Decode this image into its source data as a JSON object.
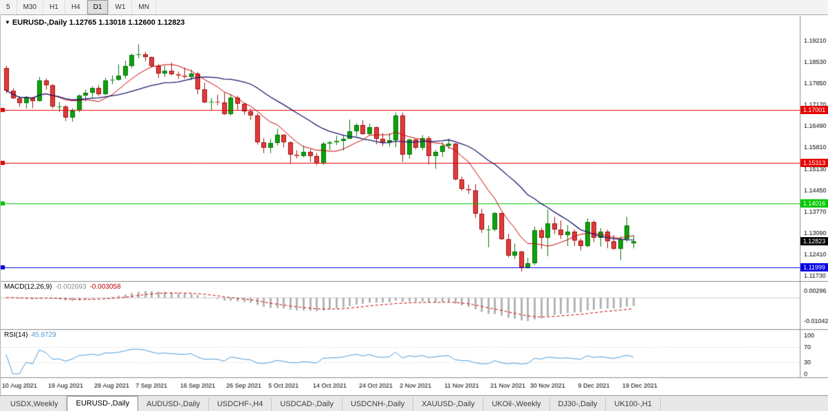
{
  "toolbar": {
    "timeframes": [
      "5",
      "M30",
      "H1",
      "H4",
      "D1",
      "W1",
      "MN"
    ],
    "active": "D1"
  },
  "chart": {
    "title": "EURUSD-,Daily",
    "ohlc_text": "1.12765 1.13018 1.12600 1.12823",
    "current_price": "1.12823"
  },
  "macd": {
    "label": "MACD(12,26,9)",
    "value_main": "-0.002693",
    "value_signal": "-0.003058",
    "axis_labels": [
      {
        "label": "0.00296",
        "value": 0.00296
      },
      {
        "label": "-0.01042",
        "value": -0.01042
      }
    ]
  },
  "rsi": {
    "label": "RSI(14)",
    "value": "45.9729",
    "axis_labels": [
      {
        "label": "100",
        "value": 100
      },
      {
        "label": "70",
        "value": 70
      },
      {
        "label": "30",
        "value": 30
      },
      {
        "label": "0",
        "value": 0
      }
    ]
  },
  "tabs": [
    "USDX,Weekly",
    "EURUSD-,Daily",
    "AUDUSD-,Daily",
    "USDCHF-,H4",
    "USDCAD-,Daily",
    "USDCNH-,Daily",
    "XAUUSD-,Daily",
    "UKOil-,Weekly",
    "DJ30-,Daily",
    "UK100-,H1"
  ],
  "active_tab_index": 1,
  "colors": {
    "up_candle": "#0ea10e",
    "up_candle_border": "#067306",
    "down_candle": "#e23b3b",
    "down_candle_border": "#9e1010",
    "ma_fast": "#cc0000",
    "ma_slow": "#191970",
    "macd_histogram": "#b4b4b4",
    "macd_signal": "#cc0000",
    "rsi_line": "#4f9bd5",
    "current_price_bg": "#000000"
  },
  "chart_data": {
    "type": "candlestick",
    "symbol": "EURUSD-",
    "timeframe": "Daily",
    "y_range": [
      1.1173,
      1.1921
    ],
    "y_axis_ticks": [
      "1.19210",
      "1.18530",
      "1.17850",
      "1.17170",
      "1.16490",
      "1.15810",
      "1.15130",
      "1.14450",
      "1.13770",
      "1.13090",
      "1.12410",
      "1.11730"
    ],
    "x_axis_labels": [
      "10 Aug 2021",
      "19 Aug 2021",
      "29 Aug 2021",
      "7 Sep 2021",
      "16 Sep 2021",
      "26 Sep 2021",
      "5 Oct 2021",
      "14 Oct 2021",
      "24 Oct 2021",
      "2 Nov 2021",
      "11 Nov 2021",
      "21 Nov 2021",
      "30 Nov 2021",
      "9 Dec 2021",
      "19 Dec 2021"
    ],
    "x_label_indices": [
      2,
      9,
      16,
      22,
      29,
      36,
      42,
      49,
      56,
      62,
      69,
      76,
      82,
      89,
      96
    ],
    "horizontal_levels": [
      {
        "label": "1.17001",
        "value": 1.17001,
        "color": "#e60000"
      },
      {
        "label": "1.15313",
        "value": 1.15313,
        "color": "#e60000"
      },
      {
        "label": "1.14016",
        "value": 1.14016,
        "color": "#00c800"
      },
      {
        "label": "1.11999",
        "value": 1.11999,
        "color": "#0000e6"
      }
    ],
    "moving_averages": [
      {
        "period": 8,
        "color": "#cc0000"
      },
      {
        "period": 20,
        "color": "#191970"
      }
    ],
    "indicators": {
      "macd": {
        "fast": 12,
        "slow": 26,
        "signal": 9
      },
      "rsi": {
        "period": 14
      }
    },
    "candles": [
      [
        1.1833,
        1.1841,
        1.1753,
        1.1762
      ],
      [
        1.1762,
        1.1769,
        1.1735,
        1.1738
      ],
      [
        1.1738,
        1.1744,
        1.171,
        1.1721
      ],
      [
        1.1721,
        1.1745,
        1.1705,
        1.1739
      ],
      [
        1.1739,
        1.1742,
        1.1706,
        1.1729
      ],
      [
        1.1729,
        1.1805,
        1.1727,
        1.1795
      ],
      [
        1.1795,
        1.18,
        1.1765,
        1.1778
      ],
      [
        1.1778,
        1.1782,
        1.1704,
        1.171
      ],
      [
        1.171,
        1.1725,
        1.1694,
        1.1712
      ],
      [
        1.1712,
        1.1716,
        1.1665,
        1.1675
      ],
      [
        1.1675,
        1.1705,
        1.1663,
        1.1697
      ],
      [
        1.1697,
        1.175,
        1.1693,
        1.1745
      ],
      [
        1.1745,
        1.1765,
        1.1727,
        1.1755
      ],
      [
        1.1755,
        1.1775,
        1.174,
        1.177
      ],
      [
        1.177,
        1.1779,
        1.1745,
        1.1751
      ],
      [
        1.1751,
        1.1802,
        1.1748,
        1.1795
      ],
      [
        1.1795,
        1.181,
        1.1782,
        1.1796
      ],
      [
        1.1796,
        1.1845,
        1.1793,
        1.1809
      ],
      [
        1.1809,
        1.1857,
        1.18,
        1.184
      ],
      [
        1.184,
        1.188,
        1.1833,
        1.1875
      ],
      [
        1.1875,
        1.1909,
        1.1865,
        1.1878
      ],
      [
        1.1878,
        1.1885,
        1.1855,
        1.1868
      ],
      [
        1.1868,
        1.187,
        1.1835,
        1.184
      ],
      [
        1.184,
        1.1846,
        1.1802,
        1.1817
      ],
      [
        1.1817,
        1.1841,
        1.1805,
        1.1825
      ],
      [
        1.1825,
        1.1851,
        1.181,
        1.1814
      ],
      [
        1.1814,
        1.1822,
        1.1799,
        1.181
      ],
      [
        1.181,
        1.1835,
        1.18,
        1.1805
      ],
      [
        1.1805,
        1.1829,
        1.1795,
        1.1816
      ],
      [
        1.1816,
        1.1821,
        1.175,
        1.1766
      ],
      [
        1.1766,
        1.1787,
        1.1722,
        1.1725
      ],
      [
        1.1725,
        1.1738,
        1.17,
        1.1726
      ],
      [
        1.1726,
        1.1749,
        1.1715,
        1.1725
      ],
      [
        1.1725,
        1.1756,
        1.1684,
        1.1687
      ],
      [
        1.1687,
        1.175,
        1.1683,
        1.1739
      ],
      [
        1.1739,
        1.1745,
        1.1701,
        1.172
      ],
      [
        1.172,
        1.1722,
        1.1685,
        1.1695
      ],
      [
        1.1695,
        1.1705,
        1.1668,
        1.1683
      ],
      [
        1.1683,
        1.169,
        1.159,
        1.1597
      ],
      [
        1.1597,
        1.1611,
        1.1563,
        1.158
      ],
      [
        1.158,
        1.1608,
        1.1563,
        1.1595
      ],
      [
        1.1595,
        1.164,
        1.1587,
        1.1621
      ],
      [
        1.1621,
        1.1622,
        1.1581,
        1.1598
      ],
      [
        1.1598,
        1.16,
        1.1529,
        1.1558
      ],
      [
        1.1558,
        1.1572,
        1.1546,
        1.1554
      ],
      [
        1.1554,
        1.1586,
        1.1549,
        1.1567
      ],
      [
        1.1567,
        1.1575,
        1.1535,
        1.1553
      ],
      [
        1.1553,
        1.1563,
        1.1524,
        1.153
      ],
      [
        1.153,
        1.1598,
        1.1525,
        1.1592
      ],
      [
        1.1592,
        1.1602,
        1.1572,
        1.1597
      ],
      [
        1.1597,
        1.1618,
        1.1588,
        1.1601
      ],
      [
        1.1601,
        1.1622,
        1.1571,
        1.1609
      ],
      [
        1.1609,
        1.1669,
        1.1608,
        1.1633
      ],
      [
        1.1633,
        1.1658,
        1.1617,
        1.1652
      ],
      [
        1.1652,
        1.1667,
        1.1621,
        1.1624
      ],
      [
        1.1624,
        1.1657,
        1.162,
        1.1645
      ],
      [
        1.1645,
        1.1647,
        1.1591,
        1.1608
      ],
      [
        1.1608,
        1.1626,
        1.1585,
        1.1597
      ],
      [
        1.1597,
        1.1626,
        1.1584,
        1.1603
      ],
      [
        1.1603,
        1.1692,
        1.1582,
        1.1682
      ],
      [
        1.1682,
        1.1692,
        1.1535,
        1.1558
      ],
      [
        1.1558,
        1.1609,
        1.1545,
        1.1606
      ],
      [
        1.1606,
        1.1608,
        1.1575,
        1.158
      ],
      [
        1.158,
        1.162,
        1.1572,
        1.1611
      ],
      [
        1.1611,
        1.1617,
        1.1527,
        1.1554
      ],
      [
        1.1554,
        1.1573,
        1.1513,
        1.1567
      ],
      [
        1.1567,
        1.1597,
        1.1551,
        1.1587
      ],
      [
        1.1587,
        1.1609,
        1.1576,
        1.1593
      ],
      [
        1.1593,
        1.1595,
        1.1476,
        1.148
      ],
      [
        1.148,
        1.1488,
        1.1443,
        1.1449
      ],
      [
        1.1449,
        1.1463,
        1.1433,
        1.1445
      ],
      [
        1.1445,
        1.1464,
        1.1357,
        1.1369
      ],
      [
        1.1369,
        1.1386,
        1.1309,
        1.1319
      ],
      [
        1.1319,
        1.1333,
        1.1263,
        1.132
      ],
      [
        1.132,
        1.1375,
        1.1314,
        1.1373
      ],
      [
        1.1373,
        1.1374,
        1.1287,
        1.1289
      ],
      [
        1.1289,
        1.1306,
        1.1231,
        1.1237
      ],
      [
        1.1237,
        1.1275,
        1.1226,
        1.125
      ],
      [
        1.125,
        1.1252,
        1.1186,
        1.12
      ],
      [
        1.12,
        1.123,
        1.1196,
        1.1212
      ],
      [
        1.1212,
        1.1329,
        1.1206,
        1.1317
      ],
      [
        1.1317,
        1.1325,
        1.1258,
        1.1293
      ],
      [
        1.1293,
        1.1383,
        1.1235,
        1.1339
      ],
      [
        1.1339,
        1.136,
        1.1305,
        1.132
      ],
      [
        1.132,
        1.1348,
        1.129,
        1.1301
      ],
      [
        1.1301,
        1.1334,
        1.1267,
        1.1312
      ],
      [
        1.1312,
        1.132,
        1.1267,
        1.1284
      ],
      [
        1.1284,
        1.1291,
        1.1253,
        1.1267
      ],
      [
        1.1267,
        1.1355,
        1.1263,
        1.1344
      ],
      [
        1.1344,
        1.1349,
        1.128,
        1.1294
      ],
      [
        1.1294,
        1.1324,
        1.1265,
        1.1313
      ],
      [
        1.1313,
        1.1319,
        1.126,
        1.1283
      ],
      [
        1.1283,
        1.1302,
        1.1255,
        1.1259
      ],
      [
        1.1259,
        1.1298,
        1.1222,
        1.129
      ],
      [
        1.129,
        1.136,
        1.128,
        1.1332
      ],
      [
        1.12765,
        1.13018,
        1.126,
        1.12823
      ]
    ]
  }
}
